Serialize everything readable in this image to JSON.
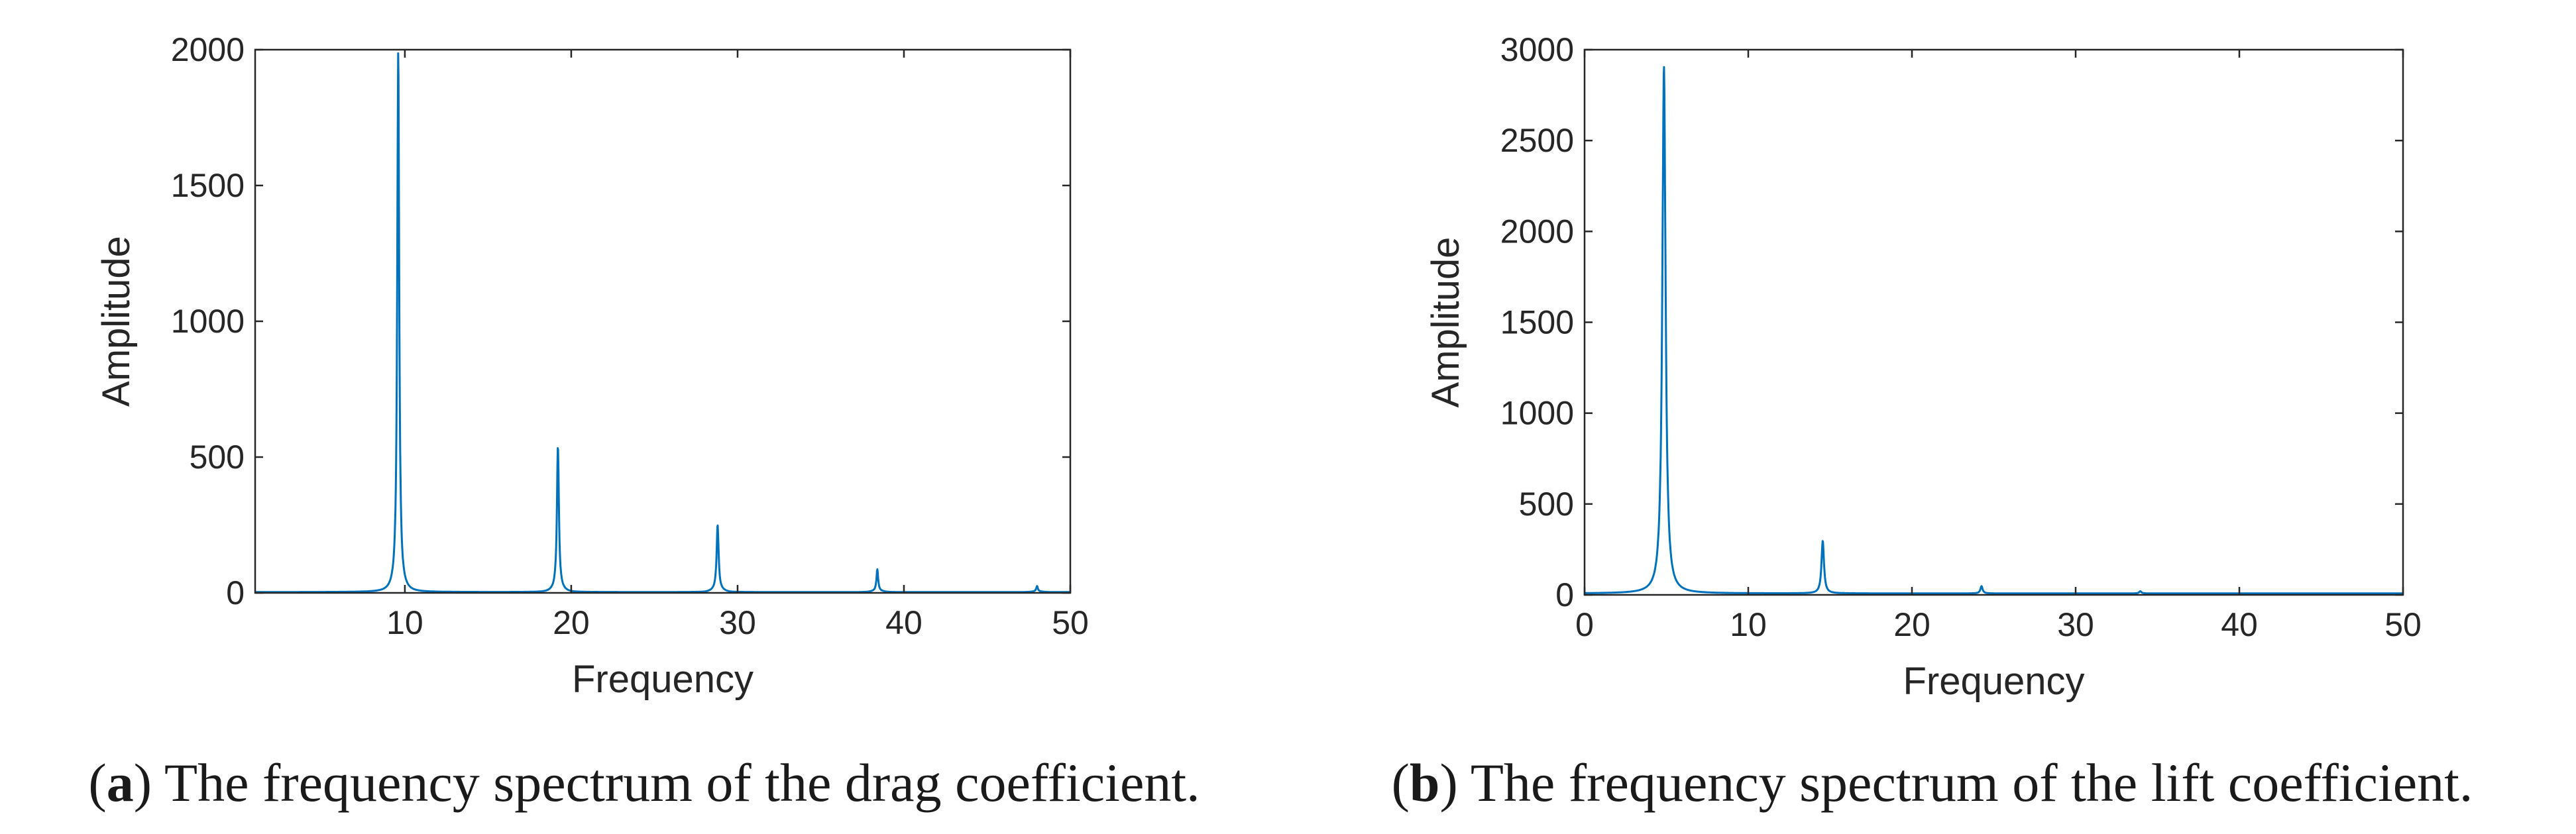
{
  "colors": {
    "series": "#0072BD",
    "axis": "#262626"
  },
  "chart_data": [
    {
      "type": "line",
      "xlabel": "Frequency",
      "ylabel": "Amplitude",
      "xlim": [
        1,
        50
      ],
      "ylim": [
        0,
        2000
      ],
      "xticks": [
        10,
        20,
        30,
        40,
        50
      ],
      "yticks": [
        0,
        500,
        1000,
        1500,
        2000
      ],
      "grid": false,
      "caption_letter": "a",
      "caption_text": " The frequency spectrum of the drag coefficient.",
      "peaks": [
        {
          "x": 9.6,
          "y": 1980,
          "w": 0.07,
          "base": 12
        },
        {
          "x": 19.2,
          "y": 530,
          "w": 0.07,
          "base": 8
        },
        {
          "x": 28.8,
          "y": 240,
          "w": 0.07,
          "base": 8
        },
        {
          "x": 38.4,
          "y": 80,
          "w": 0.06,
          "base": 4
        },
        {
          "x": 48.0,
          "y": 20,
          "w": 0.06,
          "base": 2
        }
      ],
      "floor": 3
    },
    {
      "type": "line",
      "xlabel": "Frequency",
      "ylabel": "Amplitude",
      "xlim": [
        0,
        50
      ],
      "ylim": [
        0,
        3000
      ],
      "xticks": [
        0,
        10,
        20,
        30,
        40,
        50
      ],
      "yticks": [
        0,
        500,
        1000,
        1500,
        2000,
        2500,
        3000
      ],
      "grid": false,
      "caption_letter": "b",
      "caption_text": " The frequency spectrum of the lift coefficient.",
      "peaks": [
        {
          "x": 4.85,
          "y": 2900,
          "w": 0.12,
          "base": 0
        },
        {
          "x": 14.55,
          "y": 290,
          "w": 0.09,
          "base": 0
        },
        {
          "x": 24.25,
          "y": 40,
          "w": 0.08,
          "base": 0
        },
        {
          "x": 33.95,
          "y": 12,
          "w": 0.08,
          "base": 0
        }
      ],
      "floor": 8
    }
  ]
}
